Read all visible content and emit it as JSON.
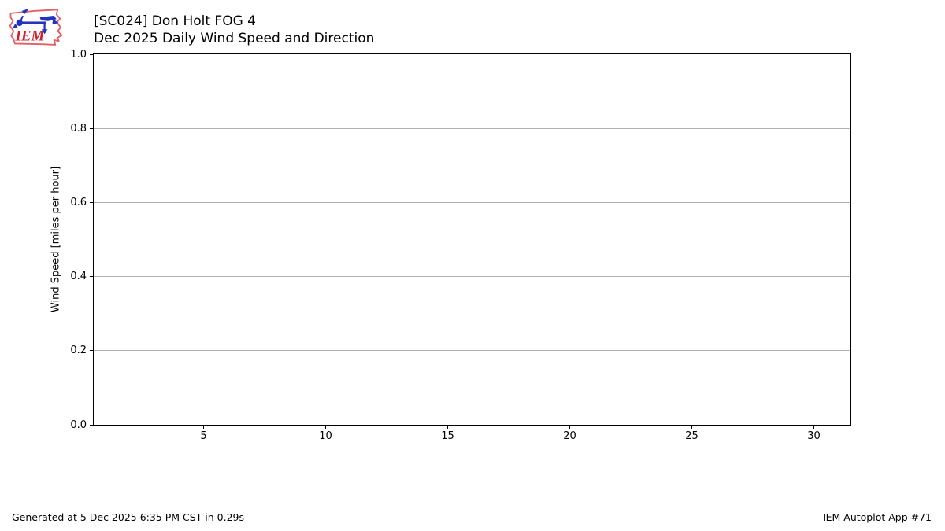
{
  "header": {
    "title": "[SC024] Don Holt FOG 4",
    "subtitle": "Dec 2025 Daily Wind Speed and Direction"
  },
  "logo": {
    "text": "IEM",
    "outline_color": "#e06065",
    "glyph_color": "#2433c0",
    "text_color": "#cc2230"
  },
  "footer": {
    "generated": "Generated at 5 Dec 2025 6:35 PM CST in 0.29s",
    "app": "IEM Autoplot App #71"
  },
  "chart_data": {
    "type": "line",
    "title": "[SC024] Don Holt FOG 4",
    "subtitle": "Dec 2025 Daily Wind Speed and Direction",
    "xlabel": "",
    "ylabel": "Wind Speed [miles per hour]",
    "xlim": [
      0.5,
      31.5
    ],
    "ylim": [
      0.0,
      1.0
    ],
    "x_ticks": [
      5,
      10,
      15,
      20,
      25,
      30
    ],
    "x_tick_labels": [
      "5",
      "10",
      "15",
      "20",
      "25",
      "30"
    ],
    "y_ticks": [
      0.0,
      0.2,
      0.4,
      0.6,
      0.8,
      1.0
    ],
    "y_tick_labels": [
      "0.0",
      "0.2",
      "0.4",
      "0.6",
      "0.8",
      "1.0"
    ],
    "grid": "horizontal-only",
    "grid_color": "#b0b0b0",
    "axis_color": "#000000",
    "series": []
  }
}
